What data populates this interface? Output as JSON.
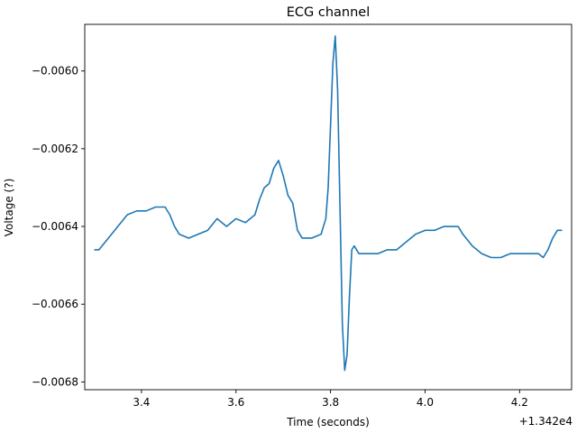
{
  "chart_data": {
    "type": "line",
    "title": "ECG channel",
    "xlabel": "Time (seconds)",
    "ylabel": "Voltage (?)",
    "x_offset_label": "+1.342e4",
    "xlim": [
      3.28,
      4.31
    ],
    "ylim": [
      -0.00682,
      -0.00588
    ],
    "x_ticks": [
      3.4,
      3.6,
      3.8,
      4.0,
      4.2
    ],
    "x_tick_labels": [
      "3.4",
      "3.6",
      "3.8",
      "4.0",
      "4.2"
    ],
    "y_ticks": [
      -0.0068,
      -0.0066,
      -0.0064,
      -0.0062,
      -0.006
    ],
    "y_tick_labels": [
      "−0.0068",
      "−0.0066",
      "−0.0064",
      "−0.0062",
      "−0.0060"
    ],
    "grid": false,
    "line_color": "#1f77b4",
    "series": [
      {
        "x": [
          3.3,
          3.31,
          3.33,
          3.35,
          3.37,
          3.39,
          3.41,
          3.43,
          3.45,
          3.46,
          3.47,
          3.48,
          3.5,
          3.52,
          3.54,
          3.56,
          3.58,
          3.6,
          3.62,
          3.64,
          3.65,
          3.66,
          3.67,
          3.68,
          3.69,
          3.7,
          3.71,
          3.72,
          3.73,
          3.74,
          3.76,
          3.78,
          3.79,
          3.795,
          3.8,
          3.805,
          3.81,
          3.815,
          3.82,
          3.825,
          3.83,
          3.835,
          3.84,
          3.845,
          3.85,
          3.86,
          3.88,
          3.9,
          3.92,
          3.94,
          3.96,
          3.98,
          4.0,
          4.02,
          4.04,
          4.06,
          4.07,
          4.08,
          4.1,
          4.12,
          4.14,
          4.16,
          4.18,
          4.2,
          4.22,
          4.24,
          4.25,
          4.26,
          4.27,
          4.28,
          4.29
        ],
        "y": [
          -0.00646,
          -0.00646,
          -0.00643,
          -0.0064,
          -0.00637,
          -0.00636,
          -0.00636,
          -0.00635,
          -0.00635,
          -0.00637,
          -0.0064,
          -0.00642,
          -0.00643,
          -0.00642,
          -0.00641,
          -0.00638,
          -0.0064,
          -0.00638,
          -0.00639,
          -0.00637,
          -0.00633,
          -0.0063,
          -0.00629,
          -0.00625,
          -0.00623,
          -0.00627,
          -0.00632,
          -0.00634,
          -0.00641,
          -0.00643,
          -0.00643,
          -0.00642,
          -0.00638,
          -0.0063,
          -0.00614,
          -0.00598,
          -0.00591,
          -0.00605,
          -0.00635,
          -0.00665,
          -0.00677,
          -0.00673,
          -0.00658,
          -0.00646,
          -0.00645,
          -0.00647,
          -0.00647,
          -0.00647,
          -0.00646,
          -0.00646,
          -0.00644,
          -0.00642,
          -0.00641,
          -0.00641,
          -0.0064,
          -0.0064,
          -0.0064,
          -0.00642,
          -0.00645,
          -0.00647,
          -0.00648,
          -0.00648,
          -0.00647,
          -0.00647,
          -0.00647,
          -0.00647,
          -0.00648,
          -0.00646,
          -0.00643,
          -0.00641,
          -0.00641
        ]
      }
    ]
  }
}
